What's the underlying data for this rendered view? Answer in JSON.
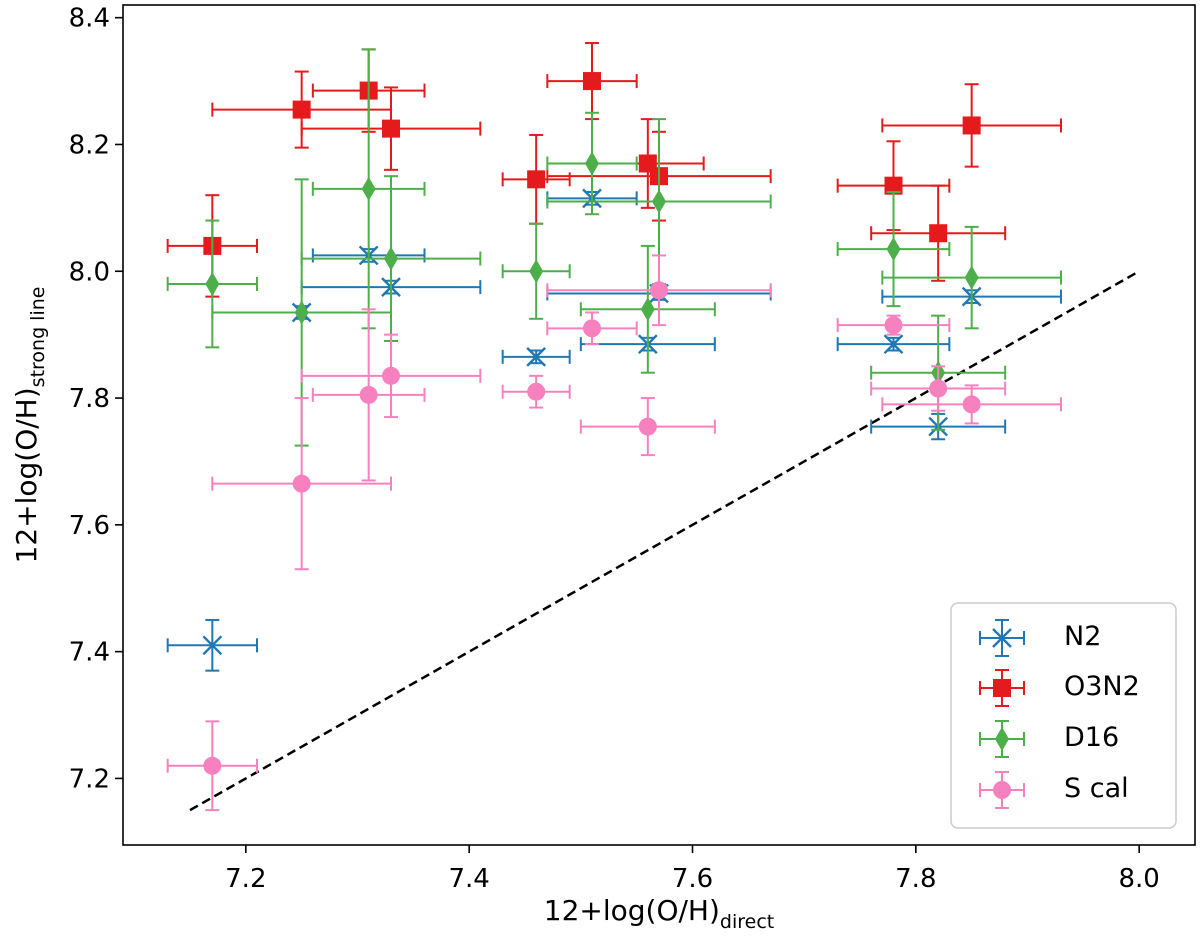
{
  "chart_data": {
    "type": "scatter",
    "xlabel": {
      "main": "12+log(O/H)",
      "sub": "direct"
    },
    "ylabel": {
      "main": "12+log(O/H)",
      "sub": "strong line"
    },
    "xlim": [
      7.09,
      8.05
    ],
    "ylim": [
      7.095,
      8.42
    ],
    "xticks": [
      7.2,
      7.4,
      7.6,
      7.8,
      8.0
    ],
    "xtick_labels": [
      "7.2",
      "7.4",
      "7.6",
      "7.8",
      "8.0"
    ],
    "yticks": [
      7.2,
      7.4,
      7.6,
      7.8,
      8.0,
      8.2,
      8.4
    ],
    "ytick_labels": [
      "7.2",
      "7.4",
      "7.6",
      "7.8",
      "8.0",
      "8.2",
      "8.4"
    ],
    "legend_position": "lower right",
    "reference_line": {
      "style": "dashed",
      "color": "#000000",
      "x": [
        7.15,
        8.0
      ],
      "y": [
        7.15,
        8.0
      ]
    },
    "series": [
      {
        "name": "N2",
        "marker": "x",
        "color": "#1f77b4",
        "points": [
          {
            "x": 7.17,
            "y": 7.41,
            "xerr": 0.04,
            "yerr": 0.04
          },
          {
            "x": 7.25,
            "y": 7.935,
            "xerr": 0.0,
            "yerr": 0.01
          },
          {
            "x": 7.31,
            "y": 8.025,
            "xerr": 0.05,
            "yerr": 0.01
          },
          {
            "x": 7.33,
            "y": 7.975,
            "xerr": 0.08,
            "yerr": 0.01
          },
          {
            "x": 7.46,
            "y": 7.865,
            "xerr": 0.03,
            "yerr": 0.01
          },
          {
            "x": 7.51,
            "y": 8.115,
            "xerr": 0.04,
            "yerr": 0.01
          },
          {
            "x": 7.56,
            "y": 7.885,
            "xerr": 0.06,
            "yerr": 0.01
          },
          {
            "x": 7.57,
            "y": 7.965,
            "xerr": 0.1,
            "yerr": 0.01
          },
          {
            "x": 7.78,
            "y": 7.885,
            "xerr": 0.05,
            "yerr": 0.01
          },
          {
            "x": 7.82,
            "y": 7.755,
            "xerr": 0.06,
            "yerr": 0.02
          },
          {
            "x": 7.85,
            "y": 7.96,
            "xerr": 0.08,
            "yerr": 0.01
          }
        ]
      },
      {
        "name": "O3N2",
        "marker": "square",
        "color": "#e41a1c",
        "points": [
          {
            "x": 7.17,
            "y": 8.04,
            "xerr": 0.04,
            "yerr": 0.08
          },
          {
            "x": 7.25,
            "y": 8.255,
            "xerr": 0.08,
            "yerr": 0.06
          },
          {
            "x": 7.31,
            "y": 8.285,
            "xerr": 0.05,
            "yerr": 0.065
          },
          {
            "x": 7.33,
            "y": 8.225,
            "xerr": 0.08,
            "yerr": 0.065
          },
          {
            "x": 7.46,
            "y": 8.145,
            "xerr": 0.03,
            "yerr": 0.07
          },
          {
            "x": 7.51,
            "y": 8.3,
            "xerr": 0.04,
            "yerr": 0.06
          },
          {
            "x": 7.56,
            "y": 8.17,
            "xerr": 0.05,
            "yerr": 0.07
          },
          {
            "x": 7.57,
            "y": 8.15,
            "xerr": 0.1,
            "yerr": 0.07
          },
          {
            "x": 7.78,
            "y": 8.135,
            "xerr": 0.05,
            "yerr": 0.07
          },
          {
            "x": 7.82,
            "y": 8.06,
            "xerr": 0.06,
            "yerr": 0.075
          },
          {
            "x": 7.85,
            "y": 8.23,
            "xerr": 0.08,
            "yerr": 0.065
          }
        ]
      },
      {
        "name": "D16",
        "marker": "diamond",
        "color": "#4daf4a",
        "points": [
          {
            "x": 7.17,
            "y": 7.98,
            "xerr": 0.04,
            "yerr": 0.1
          },
          {
            "x": 7.25,
            "y": 7.935,
            "xerr": 0.08,
            "yerr": 0.21
          },
          {
            "x": 7.31,
            "y": 8.13,
            "xerr": 0.05,
            "yerr": 0.22
          },
          {
            "x": 7.33,
            "y": 8.02,
            "xerr": 0.08,
            "yerr": 0.13
          },
          {
            "x": 7.46,
            "y": 8.0,
            "xerr": 0.03,
            "yerr": 0.075
          },
          {
            "x": 7.51,
            "y": 8.17,
            "xerr": 0.04,
            "yerr": 0.08
          },
          {
            "x": 7.56,
            "y": 7.94,
            "xerr": 0.06,
            "yerr": 0.1
          },
          {
            "x": 7.57,
            "y": 8.11,
            "xerr": 0.1,
            "yerr": 0.13
          },
          {
            "x": 7.78,
            "y": 8.035,
            "xerr": 0.05,
            "yerr": 0.09
          },
          {
            "x": 7.82,
            "y": 7.84,
            "xerr": 0.06,
            "yerr": 0.09
          },
          {
            "x": 7.85,
            "y": 7.99,
            "xerr": 0.08,
            "yerr": 0.08
          }
        ]
      },
      {
        "name": "S cal",
        "marker": "circle",
        "color": "#f781bf",
        "points": [
          {
            "x": 7.17,
            "y": 7.22,
            "xerr": 0.04,
            "yerr": 0.07
          },
          {
            "x": 7.25,
            "y": 7.665,
            "xerr": 0.08,
            "yerr": 0.135
          },
          {
            "x": 7.31,
            "y": 7.805,
            "xerr": 0.05,
            "yerr": 0.135
          },
          {
            "x": 7.33,
            "y": 7.835,
            "xerr": 0.08,
            "yerr": 0.065
          },
          {
            "x": 7.46,
            "y": 7.81,
            "xerr": 0.03,
            "yerr": 0.025
          },
          {
            "x": 7.51,
            "y": 7.91,
            "xerr": 0.04,
            "yerr": 0.025
          },
          {
            "x": 7.56,
            "y": 7.755,
            "xerr": 0.06,
            "yerr": 0.045
          },
          {
            "x": 7.57,
            "y": 7.97,
            "xerr": 0.1,
            "yerr": 0.055
          },
          {
            "x": 7.78,
            "y": 7.915,
            "xerr": 0.05,
            "yerr": 0.015
          },
          {
            "x": 7.82,
            "y": 7.815,
            "xerr": 0.06,
            "yerr": 0.035
          },
          {
            "x": 7.85,
            "y": 7.79,
            "xerr": 0.08,
            "yerr": 0.03
          }
        ]
      }
    ]
  }
}
